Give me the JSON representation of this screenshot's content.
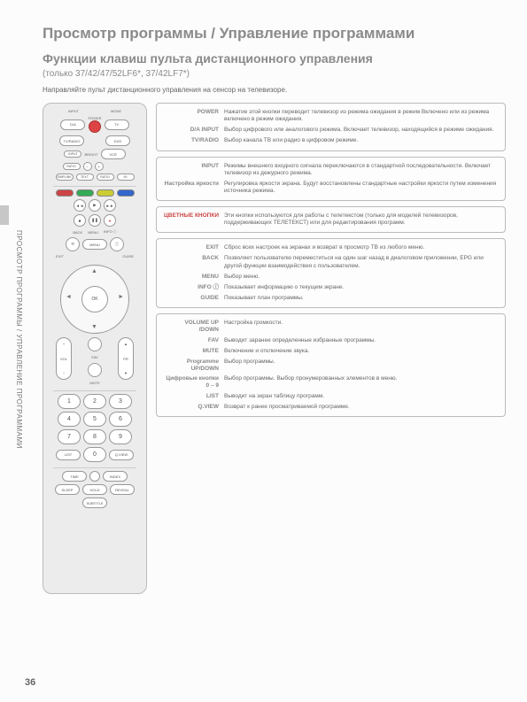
{
  "titles": {
    "main": "Просмотр программы / Управление программами",
    "sub": "Функции клавиш пульта дистанционного управления",
    "models": "(только 37/42/47/52LF6*, 37/42LF7*)",
    "instruction": "Направляйте пульт дистанционного управления на сенсор на телевизоре."
  },
  "sidebar": "ПРОСМОТР ПРОГРАММЫ / УПРАВЛЕНИЕ ПРОГРАММАМИ",
  "page_number": "36",
  "remote": {
    "input": "INPUT",
    "mode": "MODE",
    "da": "D/A",
    "power": "POWER",
    "tv": "TV",
    "tvradio": "TV/RADIO",
    "dvd": "DVD",
    "vcr": "VCR",
    "ratio": "RATIO",
    "bright_minus": "−",
    "bright_plus": "+",
    "bright": "BRIGHT",
    "simplink": "SIMPLINK",
    "text": "TEXT",
    "subtitle": "SUBTITLE",
    "back": "BACK",
    "menu": "MENU",
    "info": "INFO ⓘ",
    "exit": "EXIT",
    "guide": "GUIDE",
    "ok": "OK",
    "vol": "VOL",
    "pr": "PR",
    "fav": "FAV",
    "mute": "MUTE",
    "nums": [
      "1",
      "2",
      "3",
      "4",
      "5",
      "6",
      "7",
      "8",
      "9",
      "0"
    ],
    "list": "LIST",
    "qview": "Q.VIEW",
    "time": "TIME",
    "index": "INDEX",
    "sleep": "SLEEP",
    "hold": "HOLD",
    "reveal": "REVEAL",
    "subttl": "SUBTITLE",
    "colors": [
      "#c44",
      "#3a5",
      "#cc3",
      "#36c"
    ]
  },
  "boxes": [
    {
      "rows": [
        {
          "label": "POWER",
          "text": "Нажатие этой кнопки переводит телевизор из режима ожидания в режим Включено или из режима включено в режим ожидания."
        },
        {
          "label": "D/A INPUT",
          "text": "Выбор цифрового или аналогового режима. Включает телевизор, находящийся в режиме ожидания."
        },
        {
          "label": "TV/RADIO",
          "text": "Выбор канала ТВ или радио в цифровом режиме."
        }
      ]
    },
    {
      "rows": [
        {
          "label": "INPUT",
          "text": "Режимы внешнего входного сигнала переключаются в стандартной последовательности. Включает телевизор из дежурного режима."
        },
        {
          "label": "Настройка яркости",
          "text": "Регулировка яркости экрана. Будут восстановлены стандартные настройки яркости путем изменения источника режима."
        }
      ]
    },
    {
      "rows": [
        {
          "label": "ЦВЕТНЫЕ КНОПКИ",
          "red": true,
          "text": "Эти кнопки используются для работы с телетекстом (только для моделей телевизоров, поддерживающих ТЕЛЕТЕКСТ) или для редактирования программ."
        }
      ]
    },
    {
      "rows": [
        {
          "label": "EXIT",
          "text": "Сброс всех настроек на экранах и возврат в просмотр ТВ из любого меню."
        },
        {
          "label": "BACK",
          "text": "Позволяет пользователю переместиться на один шаг назад в диалоговом приложении, EPG или другой функции взаимодействия с пользователем."
        },
        {
          "label": "MENU",
          "text": "Выбор меню."
        },
        {
          "label": "INFO ⓘ",
          "text": "Показывает информацию о текущем экране."
        },
        {
          "label": "GUIDE",
          "text": "Показывает план программы."
        }
      ]
    },
    {
      "rows": [
        {
          "label": "VOLUME UP /DOWN",
          "text": "Настройка громкости."
        },
        {
          "label": "FAV",
          "text": "Выводит заранее определенные избранные программы."
        },
        {
          "label": "MUTE",
          "text": "Включение и отключение звука."
        },
        {
          "label": "Programme UP/DOWN",
          "text": "Выбор программы."
        },
        {
          "label": "Цифровые кнопки 0 – 9",
          "text": "Выбор программы. Выбор пронумерованных элементов в меню."
        },
        {
          "label": "LIST",
          "text": "Выводит на экран таблицу программ."
        },
        {
          "label": "Q.VIEW",
          "text": "Возврат к ранее просматриваемой программе."
        }
      ]
    }
  ]
}
